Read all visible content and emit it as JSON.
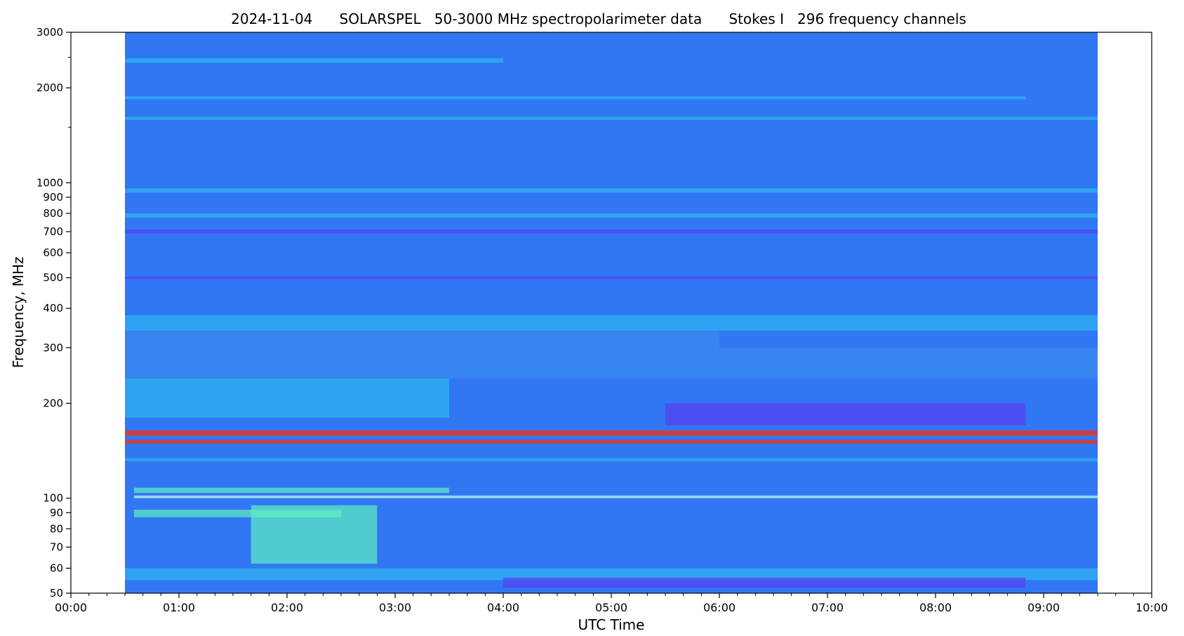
{
  "chart_data": {
    "type": "heatmap",
    "title": "2024-11-04      SOLARSPEL   50-3000 MHz spectropolarimeter data      Stokes I   296 frequency channels",
    "xlabel": "UTC Time",
    "ylabel": "Frequency, MHz",
    "x_range": [
      "00:00",
      "10:00"
    ],
    "y_range_mhz": [
      50,
      3000
    ],
    "y_scale": "log",
    "grid": false,
    "data_time_range": [
      "00:30",
      "09:30"
    ],
    "x_ticks": [
      "00:00",
      "01:00",
      "02:00",
      "03:00",
      "04:00",
      "05:00",
      "06:00",
      "07:00",
      "08:00",
      "09:00",
      "10:00"
    ],
    "y_ticks": [
      {
        "value": 3000,
        "label": "3000"
      },
      {
        "value": 2000,
        "label": "2000"
      },
      {
        "value": 1000,
        "label": "1000"
      },
      {
        "value": 900,
        "label": "900"
      },
      {
        "value": 800,
        "label": "800"
      },
      {
        "value": 700,
        "label": "700"
      },
      {
        "value": 600,
        "label": "600"
      },
      {
        "value": 500,
        "label": "500"
      },
      {
        "value": 400,
        "label": "400"
      },
      {
        "value": 300,
        "label": "300"
      },
      {
        "value": 200,
        "label": "200"
      },
      {
        "value": 100,
        "label": "100"
      },
      {
        "value": 90,
        "label": "90"
      },
      {
        "value": 80,
        "label": "80"
      },
      {
        "value": 70,
        "label": "70"
      },
      {
        "value": 60,
        "label": "60"
      },
      {
        "value": 50,
        "label": "50"
      }
    ],
    "y_minor_ticks": [
      2500,
      1500
    ],
    "colors": {
      "background": "#3177f3",
      "quiet_low": "#3a8cf0",
      "enhanced": "#2fb6f0",
      "strong": "#5ef0c0",
      "burst": "#e8351f",
      "dip": "#5a40f0",
      "bright_line": "#b8ffe8"
    },
    "bands": [
      {
        "f_lo": 2400,
        "f_hi": 2480,
        "t0": "00:30",
        "t1": "04:00",
        "level": "enhanced"
      },
      {
        "f_lo": 1840,
        "f_hi": 1880,
        "t0": "00:30",
        "t1": "08:50",
        "level": "enhanced"
      },
      {
        "f_lo": 1580,
        "f_hi": 1620,
        "t0": "00:30",
        "t1": "09:30",
        "level": "enhanced"
      },
      {
        "f_lo": 930,
        "f_hi": 960,
        "t0": "00:30",
        "t1": "09:30",
        "level": "enhanced"
      },
      {
        "f_lo": 775,
        "f_hi": 800,
        "t0": "00:30",
        "t1": "09:30",
        "level": "enhanced"
      },
      {
        "f_lo": 690,
        "f_hi": 710,
        "t0": "00:30",
        "t1": "09:30",
        "level": "dip"
      },
      {
        "f_lo": 495,
        "f_hi": 505,
        "t0": "00:30",
        "t1": "09:30",
        "level": "dip"
      },
      {
        "f_lo": 340,
        "f_hi": 380,
        "t0": "00:30",
        "t1": "09:30",
        "level": "enhanced"
      },
      {
        "f_lo": 300,
        "f_hi": 340,
        "t0": "00:30",
        "t1": "06:00",
        "level": "quiet_low"
      },
      {
        "f_lo": 240,
        "f_hi": 300,
        "t0": "00:30",
        "t1": "09:30",
        "level": "quiet_low"
      },
      {
        "f_lo": 180,
        "f_hi": 240,
        "t0": "00:30",
        "t1": "03:30",
        "level": "enhanced"
      },
      {
        "f_lo": 170,
        "f_hi": 200,
        "t0": "05:30",
        "t1": "08:50",
        "level": "dip"
      },
      {
        "f_lo": 158,
        "f_hi": 164,
        "t0": "00:30",
        "t1": "09:30",
        "level": "burst"
      },
      {
        "f_lo": 149,
        "f_hi": 153,
        "t0": "00:30",
        "t1": "09:30",
        "level": "burst"
      },
      {
        "f_lo": 131,
        "f_hi": 134,
        "t0": "00:30",
        "t1": "09:30",
        "level": "enhanced"
      },
      {
        "f_lo": 104,
        "f_hi": 108,
        "t0": "00:35",
        "t1": "03:30",
        "level": "strong"
      },
      {
        "f_lo": 100,
        "f_hi": 102,
        "t0": "00:35",
        "t1": "09:30",
        "level": "bright_line"
      },
      {
        "f_lo": 87,
        "f_hi": 92,
        "t0": "00:35",
        "t1": "02:30",
        "level": "strong"
      },
      {
        "f_lo": 62,
        "f_hi": 95,
        "t0": "01:40",
        "t1": "02:50",
        "level": "strong"
      },
      {
        "f_lo": 55,
        "f_hi": 60,
        "t0": "00:30",
        "t1": "09:30",
        "level": "enhanced"
      },
      {
        "f_lo": 52,
        "f_hi": 56,
        "t0": "04:00",
        "t1": "08:50",
        "level": "dip"
      }
    ]
  }
}
